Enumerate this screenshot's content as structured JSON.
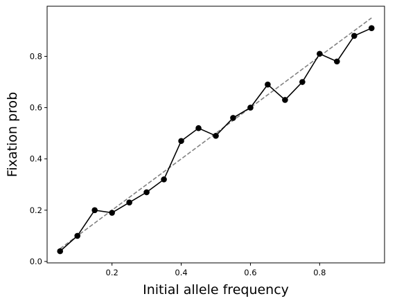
{
  "chart_data": {
    "type": "line",
    "title": "",
    "xlabel": "Initial allele frequency",
    "ylabel": "Fixation prob",
    "xlim": [
      0.0125,
      0.9875
    ],
    "ylim": [
      -0.0055,
      0.9955
    ],
    "xticks": [
      0.2,
      0.4,
      0.6,
      0.8
    ],
    "xtick_labels": [
      "0.2",
      "0.4",
      "0.6",
      "0.8"
    ],
    "yticks": [
      0.0,
      0.2,
      0.4,
      0.6,
      0.8
    ],
    "ytick_labels": [
      "0.0",
      "0.2",
      "0.4",
      "0.6",
      "0.8"
    ],
    "grid": false,
    "legend": "none",
    "series": [
      {
        "style": "solid-line-with-circle-markers",
        "color": "#000000",
        "x": [
          0.05,
          0.1,
          0.15,
          0.2,
          0.25,
          0.3,
          0.35,
          0.4,
          0.45,
          0.5,
          0.55,
          0.6,
          0.65,
          0.7,
          0.75,
          0.8,
          0.85,
          0.9,
          0.95
        ],
        "y": [
          0.04,
          0.1,
          0.2,
          0.19,
          0.23,
          0.27,
          0.32,
          0.47,
          0.52,
          0.49,
          0.56,
          0.6,
          0.69,
          0.63,
          0.7,
          0.81,
          0.78,
          0.88,
          0.91
        ]
      },
      {
        "style": "dashed-line",
        "color": "#808080",
        "x": [
          0.05,
          0.95
        ],
        "y": [
          0.05,
          0.95
        ]
      }
    ]
  }
}
